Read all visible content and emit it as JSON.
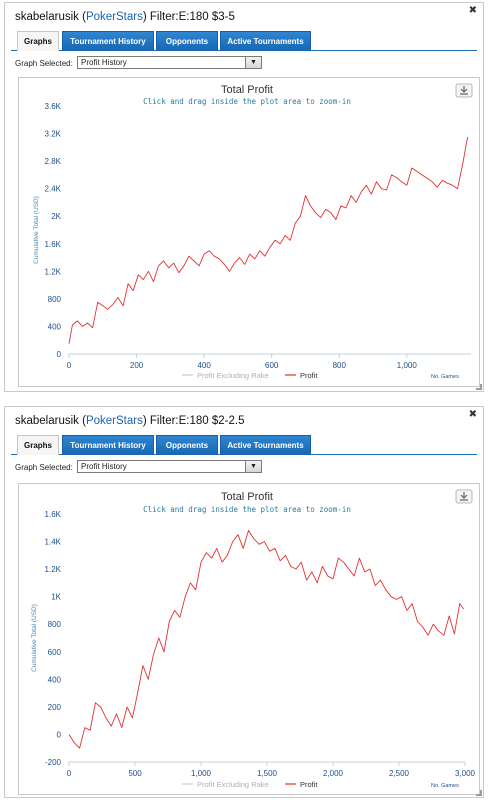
{
  "panels": [
    {
      "player": "skabelarusik",
      "site": "PokerStars",
      "filter": "Filter:E:180 $3-5",
      "tabs": [
        "Graphs",
        "Tournament History",
        "Opponents",
        "Active Tournaments"
      ],
      "active_tab": "Graphs",
      "graph_selected_label": "Graph Selected:",
      "graph_selected_value": "Profit History",
      "icons": {
        "close": "close-icon",
        "download": "download-icon",
        "select": "chevron-down-icon",
        "resize": "resize-grip-icon"
      },
      "chart_data": {
        "type": "line",
        "title": "Total Profit",
        "subtitle": "Click and drag inside the plot area to zoom-in",
        "ylabel": "Cumulative Total (USD)",
        "xlabel": "No. Games",
        "xlim": [
          0,
          1190
        ],
        "ylim": [
          0,
          3600
        ],
        "xticks": [
          0,
          200,
          400,
          600,
          800,
          1000
        ],
        "xtick_labels": [
          "0",
          "200",
          "400",
          "600",
          "800",
          "1,000"
        ],
        "yticks": [
          0,
          400,
          800,
          1200,
          1600,
          2000,
          2400,
          2800,
          3200,
          3600
        ],
        "ytick_labels": [
          "0",
          "400",
          "800",
          "1.2K",
          "1.6K",
          "2K",
          "2.4K",
          "2.8K",
          "3.2K",
          "3.6K"
        ],
        "grid": false,
        "legend_position": "bottom-center",
        "series": [
          {
            "name": "Profit Excluding Rake",
            "color": "#cccccc",
            "x": [],
            "y": []
          },
          {
            "name": "Profit",
            "color": "#e03232",
            "x": [
              0,
              10,
              25,
              40,
              55,
              70,
              85,
              100,
              115,
              130,
              145,
              160,
              175,
              190,
              205,
              220,
              235,
              250,
              265,
              280,
              295,
              310,
              325,
              340,
              355,
              370,
              385,
              400,
              415,
              430,
              445,
              460,
              475,
              490,
              505,
              520,
              535,
              550,
              565,
              580,
              595,
              610,
              625,
              640,
              655,
              670,
              685,
              700,
              715,
              730,
              745,
              760,
              775,
              790,
              805,
              820,
              835,
              850,
              865,
              880,
              895,
              910,
              925,
              940,
              955,
              970,
              985,
              1000,
              1015,
              1030,
              1045,
              1060,
              1075,
              1090,
              1105,
              1120,
              1135,
              1150,
              1165,
              1180
            ],
            "y": [
              150,
              420,
              480,
              400,
              450,
              380,
              750,
              700,
              650,
              720,
              820,
              700,
              1020,
              920,
              1150,
              1080,
              1200,
              1050,
              1280,
              1350,
              1250,
              1320,
              1180,
              1280,
              1420,
              1350,
              1280,
              1450,
              1500,
              1420,
              1380,
              1300,
              1200,
              1320,
              1400,
              1300,
              1450,
              1380,
              1500,
              1420,
              1550,
              1650,
              1600,
              1720,
              1650,
              1900,
              2000,
              2300,
              2150,
              2050,
              1980,
              2100,
              2050,
              1950,
              2150,
              2120,
              2300,
              2200,
              2350,
              2450,
              2320,
              2500,
              2400,
              2380,
              2600,
              2560,
              2500,
              2450,
              2700,
              2650,
              2600,
              2550,
              2500,
              2420,
              2520,
              2480,
              2450,
              2400,
              2750,
              3150
            ]
          }
        ]
      }
    },
    {
      "player": "skabelarusik",
      "site": "PokerStars",
      "filter": "Filter:E:180 $2-2.5",
      "tabs": [
        "Graphs",
        "Tournament History",
        "Opponents",
        "Active Tournaments"
      ],
      "active_tab": "Graphs",
      "graph_selected_label": "Graph Selected:",
      "graph_selected_value": "Profit History",
      "icons": {
        "close": "close-icon",
        "download": "download-icon",
        "select": "chevron-down-icon",
        "resize": "resize-grip-icon"
      },
      "chart_data": {
        "type": "line",
        "title": "Total Profit",
        "subtitle": "Click and drag inside the plot area to zoom-in",
        "ylabel": "Cumulative Total (USD)",
        "xlabel": "No. Games",
        "xlim": [
          0,
          3000
        ],
        "ylim": [
          -200,
          1600
        ],
        "xticks": [
          0,
          500,
          1000,
          1500,
          2000,
          2500,
          3000
        ],
        "xtick_labels": [
          "0",
          "500",
          "1,000",
          "1,500",
          "2,000",
          "2,500",
          "3,000"
        ],
        "yticks": [
          -200,
          0,
          200,
          400,
          600,
          800,
          1000,
          1200,
          1400,
          1600
        ],
        "ytick_labels": [
          "-200",
          "0",
          "200",
          "400",
          "600",
          "800",
          "1K",
          "1.2K",
          "1.4K",
          "1.6K"
        ],
        "grid": false,
        "legend_position": "bottom-center",
        "series": [
          {
            "name": "Profit Excluding Rake",
            "color": "#cccccc",
            "x": [],
            "y": []
          },
          {
            "name": "Profit",
            "color": "#e03232",
            "x": [
              0,
              40,
              80,
              120,
              160,
              200,
              240,
              280,
              320,
              360,
              400,
              440,
              480,
              520,
              560,
              600,
              640,
              680,
              720,
              760,
              800,
              840,
              880,
              920,
              960,
              1000,
              1040,
              1080,
              1120,
              1160,
              1200,
              1240,
              1280,
              1320,
              1360,
              1400,
              1440,
              1480,
              1520,
              1560,
              1600,
              1640,
              1680,
              1720,
              1760,
              1800,
              1840,
              1880,
              1920,
              1960,
              2000,
              2040,
              2080,
              2120,
              2160,
              2200,
              2240,
              2280,
              2320,
              2360,
              2400,
              2440,
              2480,
              2520,
              2560,
              2600,
              2640,
              2680,
              2720,
              2760,
              2800,
              2840,
              2880,
              2920,
              2960,
              2990
            ],
            "y": [
              0,
              -60,
              -100,
              50,
              30,
              230,
              200,
              120,
              60,
              150,
              50,
              200,
              120,
              300,
              500,
              400,
              580,
              700,
              600,
              820,
              900,
              850,
              1000,
              1100,
              1050,
              1250,
              1320,
              1280,
              1350,
              1250,
              1300,
              1400,
              1450,
              1350,
              1480,
              1420,
              1380,
              1400,
              1330,
              1350,
              1260,
              1300,
              1220,
              1200,
              1250,
              1120,
              1180,
              1100,
              1220,
              1150,
              1130,
              1280,
              1250,
              1200,
              1150,
              1280,
              1180,
              1200,
              1080,
              1120,
              1050,
              1000,
              980,
              1000,
              900,
              950,
              820,
              780,
              720,
              800,
              750,
              720,
              860,
              730,
              950,
              910
            ]
          }
        ]
      }
    }
  ]
}
